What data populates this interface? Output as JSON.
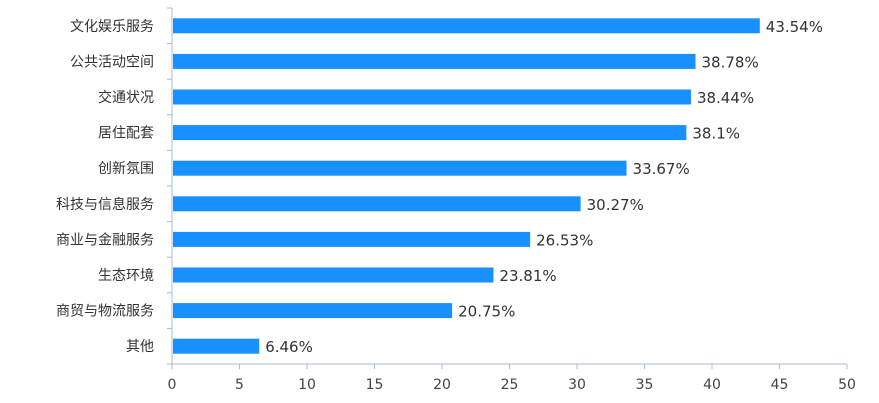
{
  "chart_data": {
    "type": "bar",
    "orientation": "horizontal",
    "categories": [
      "文化娱乐服务",
      "公共活动空间",
      "交通状况",
      "居住配套",
      "创新氛围",
      "科技与信息服务",
      "商业与金融服务",
      "生态环境",
      "商贸与物流服务",
      "其他"
    ],
    "values": [
      43.54,
      38.78,
      38.44,
      38.1,
      33.67,
      30.27,
      26.53,
      23.81,
      20.75,
      6.46
    ],
    "value_labels": [
      "43.54%",
      "38.78%",
      "38.44%",
      "38.1%",
      "33.67%",
      "30.27%",
      "26.53%",
      "23.81%",
      "20.75%",
      "6.46%"
    ],
    "xlim": [
      0,
      50
    ],
    "x_ticks": [
      "0",
      "5",
      "10",
      "15",
      "20",
      "25",
      "30",
      "35",
      "40",
      "45",
      "50"
    ],
    "grid": false,
    "bar_color": "#1890FF",
    "axis_color": "#A9BCD6"
  }
}
